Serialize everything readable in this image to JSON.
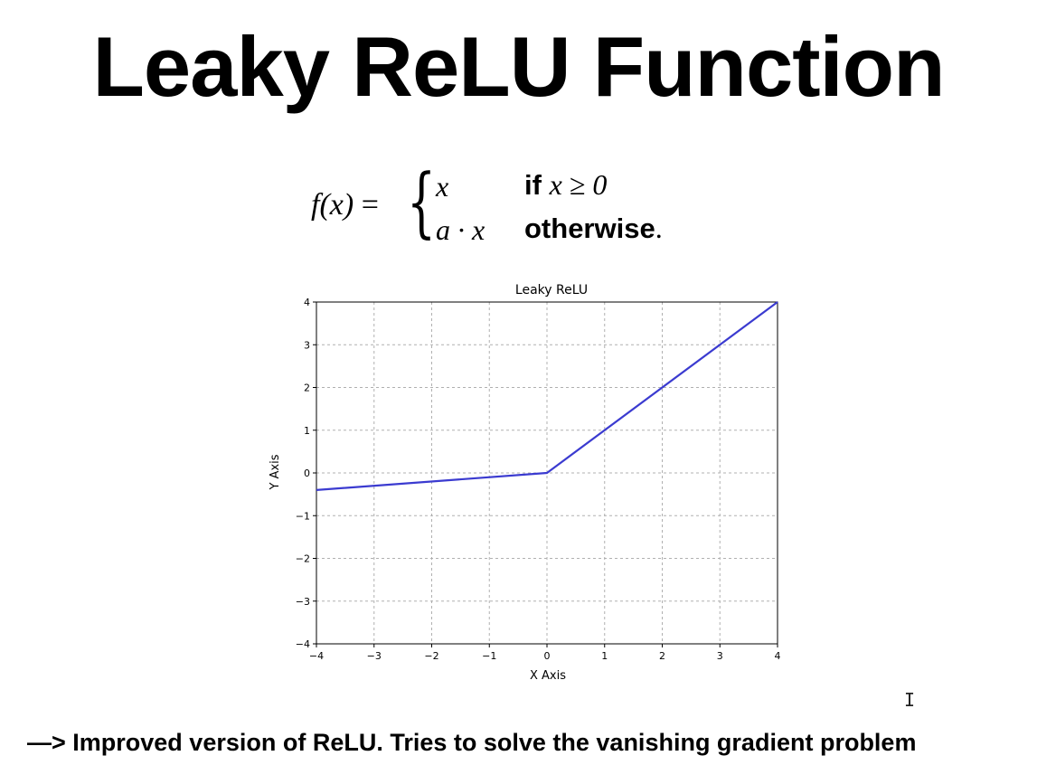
{
  "slide": {
    "title": "Leaky ReLU Function",
    "footer": "—> Improved version of ReLU. Tries to solve the vanishing gradient problem"
  },
  "formula": {
    "lhs_fx": "f(x)",
    "equals": " =",
    "case1_expr": "x",
    "case1_if": "if",
    "case1_cond": "x ≥ 0",
    "case2_expr": "a · x",
    "case2_cond": "otherwise",
    "case2_period": "."
  },
  "chart_data": {
    "type": "line",
    "title": "Leaky ReLU",
    "xlabel": "X Axis",
    "ylabel": "Y Axis",
    "xlim": [
      -4,
      4
    ],
    "ylim": [
      -4,
      4
    ],
    "xticks": [
      -4,
      -3,
      -2,
      -1,
      0,
      1,
      2,
      3,
      4
    ],
    "yticks": [
      -4,
      -3,
      -2,
      -1,
      0,
      1,
      2,
      3,
      4
    ],
    "grid": true,
    "series": [
      {
        "color": "#3b3bd0",
        "x": [
          -4,
          0,
          4
        ],
        "y": [
          -0.4,
          0,
          4
        ]
      }
    ]
  }
}
